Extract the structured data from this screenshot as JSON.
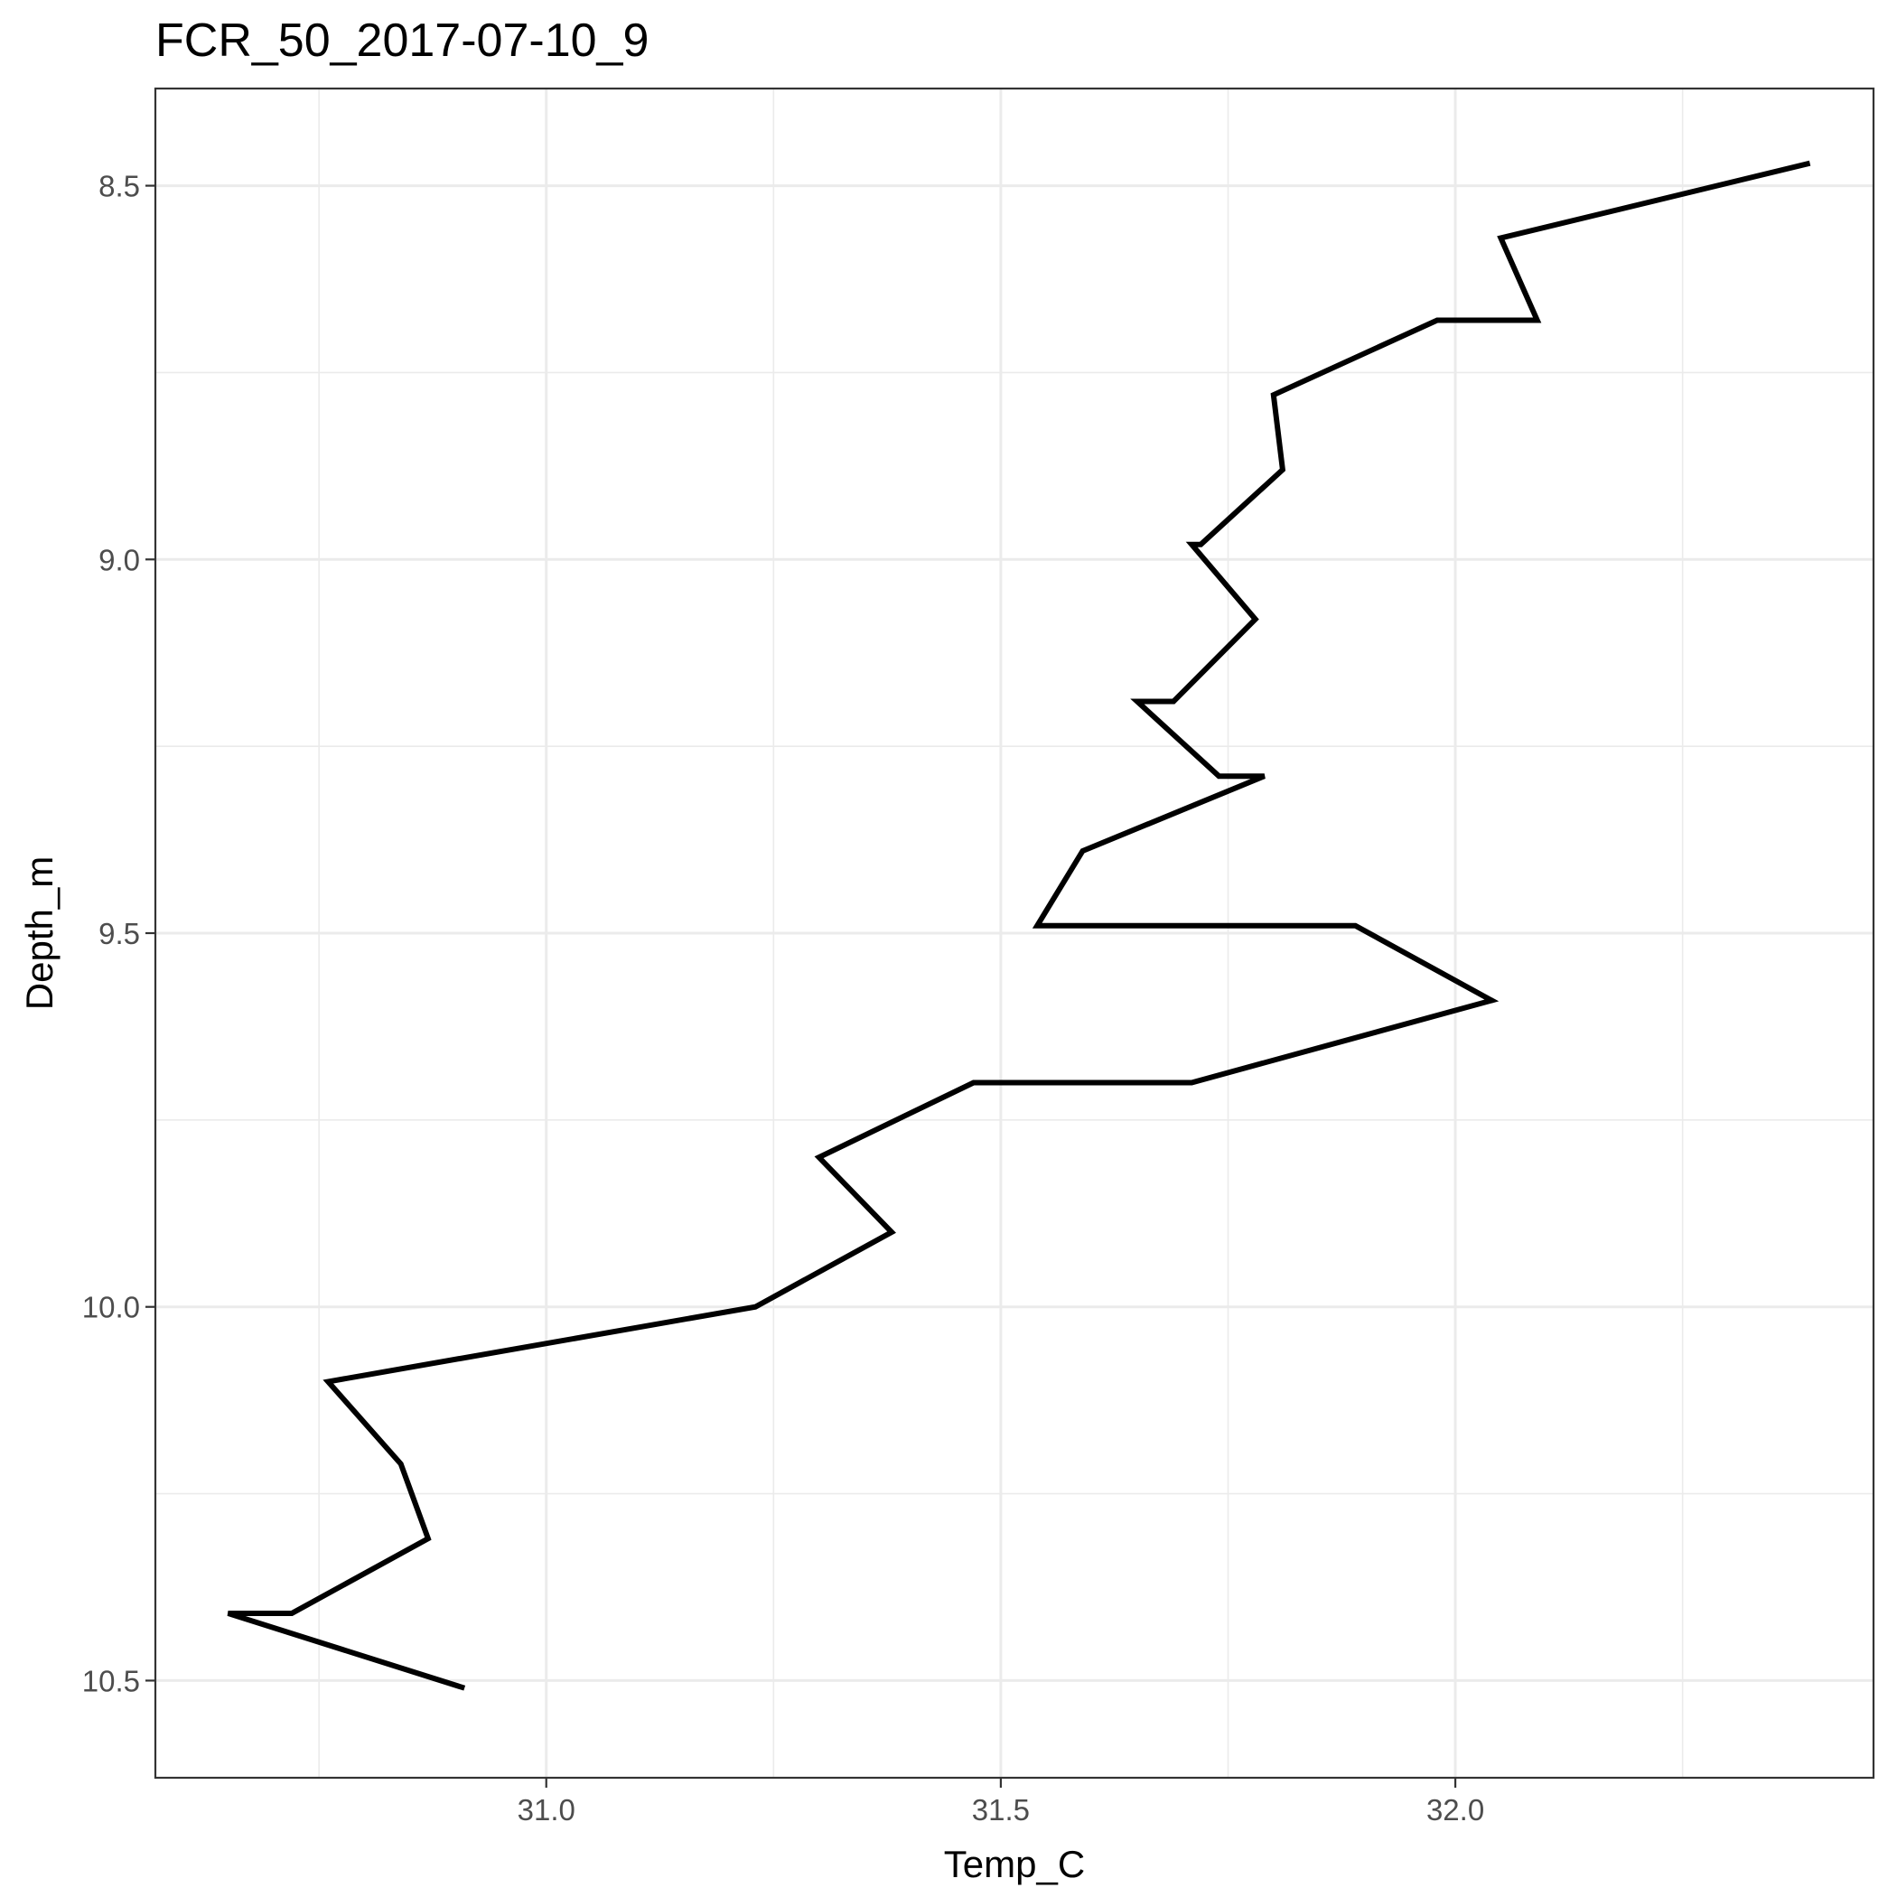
{
  "chart_data": {
    "type": "line",
    "title": "FCR_50_2017-07-10_9",
    "xlabel": "Temp_C",
    "ylabel": "Depth_m",
    "xlim": [
      30.57,
      32.46
    ],
    "ylim": [
      10.63,
      8.37
    ],
    "y_reversed": true,
    "grid": true,
    "legend": "none",
    "x_ticks": [
      31.0,
      31.5,
      32.0
    ],
    "x_tick_labels": [
      "31.0",
      "31.5",
      "32.0"
    ],
    "x_minor_ticks": [
      30.75,
      31.25,
      31.75,
      32.25
    ],
    "y_ticks": [
      8.5,
      9.0,
      9.5,
      10.0,
      10.5
    ],
    "y_tick_labels": [
      "8.5",
      "9.0",
      "9.5",
      "10.0",
      "10.5"
    ],
    "y_minor_ticks": [
      8.75,
      9.25,
      9.75,
      10.25
    ],
    "line_color": "#000000",
    "series": [
      {
        "x": [
          32.39,
          32.05,
          32.09,
          31.98,
          31.8,
          31.81,
          31.72,
          31.71,
          31.78,
          31.69,
          31.65,
          31.74,
          31.79,
          31.59,
          31.54,
          31.89,
          32.04,
          31.71,
          31.47,
          31.3,
          31.38,
          31.23,
          30.76,
          30.84,
          30.87,
          30.72,
          30.65,
          30.91
        ],
        "y": [
          8.47,
          8.57,
          8.68,
          8.68,
          8.78,
          8.88,
          8.98,
          8.98,
          9.08,
          9.19,
          9.19,
          9.29,
          9.29,
          9.39,
          9.49,
          9.49,
          9.59,
          9.7,
          9.7,
          9.8,
          9.9,
          10.0,
          10.1,
          10.21,
          10.31,
          10.41,
          10.41,
          10.51
        ]
      }
    ]
  }
}
